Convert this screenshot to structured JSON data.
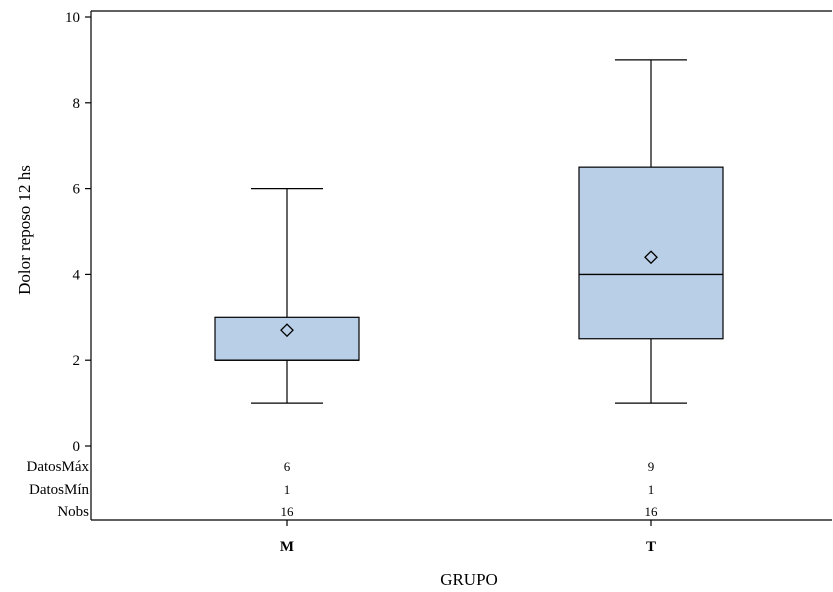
{
  "chart_data": {
    "type": "box",
    "xlabel": "GRUPO",
    "ylabel": "Dolor reposo 12 hs",
    "ylim": [
      0,
      10
    ],
    "yticks": [
      0,
      2,
      4,
      6,
      8,
      10
    ],
    "categories": [
      "M",
      "T"
    ],
    "boxes": [
      {
        "category": "M",
        "min": 1,
        "q1": 2,
        "median": 2,
        "q3": 3,
        "max": 6,
        "mean": 2.7
      },
      {
        "category": "T",
        "min": 1,
        "q1": 2.5,
        "median": 4,
        "q3": 6.5,
        "max": 9,
        "mean": 4.4
      }
    ],
    "stats_table": {
      "rows": [
        {
          "label": "DatosMáx",
          "values": [
            "6",
            "9"
          ]
        },
        {
          "label": "DatosMín",
          "values": [
            "1",
            "1"
          ]
        },
        {
          "label": "Nobs",
          "values": [
            "16",
            "16"
          ]
        }
      ]
    },
    "colors": {
      "box_fill": "#b9cfe7",
      "line": "#000000"
    }
  }
}
